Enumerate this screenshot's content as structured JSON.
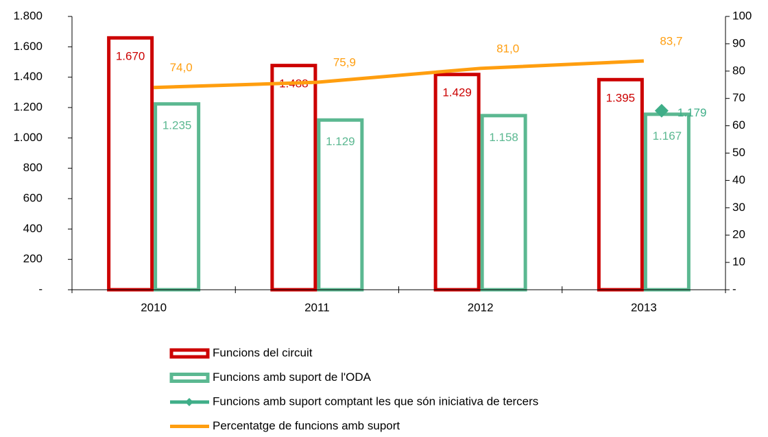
{
  "chart_data": {
    "type": "bar",
    "categories": [
      "2010",
      "2011",
      "2012",
      "2013"
    ],
    "series": [
      {
        "name": "Funcions del circuit",
        "type": "bar",
        "color": "#cc0000",
        "values": [
          1670,
          1488,
          1429,
          1395
        ],
        "value_labels": [
          "1.670",
          "1.488",
          "1.429",
          "1.395"
        ]
      },
      {
        "name": "Funcions amb suport de l'ODA",
        "type": "bar",
        "color": "#5bb891",
        "values": [
          1235,
          1129,
          1158,
          1167
        ],
        "value_labels": [
          "1.235",
          "1.129",
          "1.158",
          "1.167"
        ]
      },
      {
        "name": "Funcions amb suport comptant les que són iniciativa de tercers",
        "type": "marker",
        "color": "#3fae88",
        "values": [
          null,
          null,
          null,
          1179
        ],
        "value_labels": [
          null,
          null,
          null,
          "1.179"
        ]
      },
      {
        "name": "Percentatge de funcions amb suport",
        "type": "line",
        "axis": "y2",
        "color": "#ff9e0f",
        "values": [
          74.0,
          75.9,
          81.0,
          83.7
        ],
        "value_labels": [
          "74,0",
          "75,9",
          "81,0",
          "83,7"
        ]
      }
    ],
    "ylim": [
      0,
      1800
    ],
    "yticks": [
      {
        "value": 0,
        "label": "-"
      },
      200,
      400,
      600,
      800,
      {
        "value": 1000,
        "label": "1.000"
      },
      {
        "value": 1200,
        "label": "1.200"
      },
      {
        "value": 1400,
        "label": "1.400"
      },
      {
        "value": 1600,
        "label": "1.600"
      },
      {
        "value": 1800,
        "label": "1.800"
      }
    ],
    "y2lim": [
      0,
      100
    ],
    "y2ticks": [
      {
        "value": 0,
        "label": "-"
      },
      10,
      20,
      30,
      40,
      50,
      60,
      70,
      80,
      90,
      100
    ],
    "legend": "bottom"
  }
}
